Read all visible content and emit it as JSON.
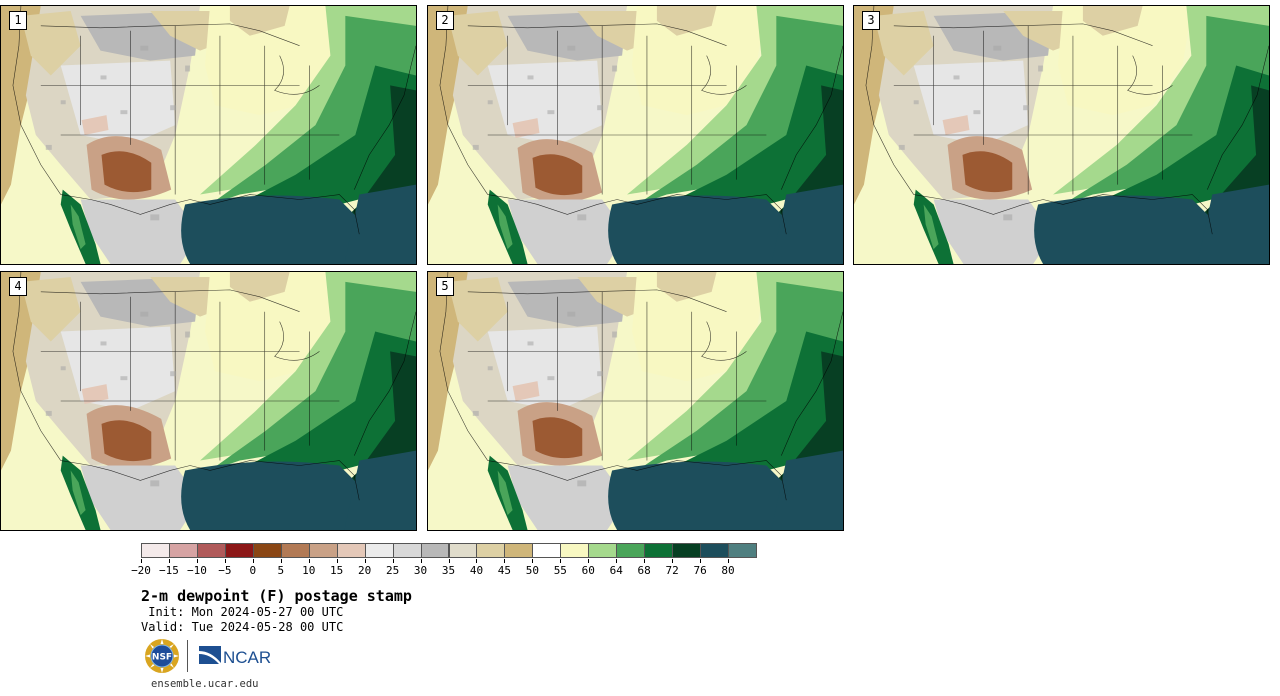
{
  "panels": [
    {
      "label": "1",
      "variant": 0
    },
    {
      "label": "2",
      "variant": 1
    },
    {
      "label": "3",
      "variant": 2
    },
    {
      "label": "4",
      "variant": 3
    },
    {
      "label": "5",
      "variant": 4
    }
  ],
  "colorbar": {
    "ticks": [
      "−20",
      "−15",
      "−10",
      "−5",
      "0",
      "5",
      "10",
      "15",
      "20",
      "25",
      "30",
      "35",
      "40",
      "45",
      "50",
      "55",
      "60",
      "64",
      "68",
      "72",
      "76",
      "80"
    ],
    "colors": [
      "#f4eaea",
      "#d6a3a3",
      "#b05a5a",
      "#8c1717",
      "#8a4614",
      "#b27a55",
      "#c9a186",
      "#e4c8b8",
      "#ebebeb",
      "#d8d8d8",
      "#b8b8b8",
      "#e0dccb",
      "#ddd0a4",
      "#cfb67a",
      "#ffffff",
      "#f8f8c2",
      "#a5d98d",
      "#4aa55a",
      "#0d7136",
      "#073f23",
      "#1d4e5c",
      "#4f7f80"
    ]
  },
  "title": "2-m dewpoint (F) postage stamp",
  "init": " Init: Mon 2024-05-27 00 UTC",
  "valid": "Valid: Tue 2024-05-28 00 UTC",
  "logos": {
    "nsf": "NSF",
    "ncar": "NCAR"
  },
  "url": "ensemble.ucar.edu"
}
